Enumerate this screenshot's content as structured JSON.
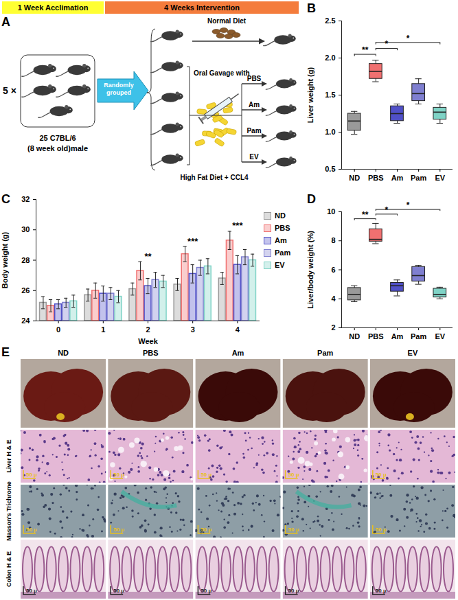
{
  "diagram": {
    "panel": "A",
    "acclimation": "1 Week Acclimation",
    "intervention": "4 Weeks Intervention",
    "multiplier": "5 ×",
    "mice": "25 C7BL/6",
    "mice_detail": "(8 week old)male",
    "grouping": "Randomly grouped",
    "normal_diet": "Normal Diet",
    "gavage": "Oral Gavage with",
    "high_fat": "High Fat Diet + CCL4",
    "groups": [
      "PBS",
      "Am",
      "Pam",
      "EV"
    ]
  },
  "chart_data": [
    {
      "type": "box",
      "panel": "B",
      "categories": [
        "ND",
        "PBS",
        "Am",
        "Pam",
        "EV"
      ],
      "colors": [
        "#9a9a9a",
        "#f07070",
        "#5050c8",
        "#7f7fd0",
        "#7fd3c6"
      ],
      "boxes": [
        {
          "min": 0.97,
          "q1": 1.02,
          "median": 1.15,
          "q3": 1.25,
          "max": 1.28
        },
        {
          "min": 1.68,
          "q1": 1.72,
          "median": 1.82,
          "q3": 1.92,
          "max": 1.97
        },
        {
          "min": 1.12,
          "q1": 1.15,
          "median": 1.25,
          "q3": 1.35,
          "max": 1.38
        },
        {
          "min": 1.38,
          "q1": 1.42,
          "median": 1.52,
          "q3": 1.65,
          "max": 1.72
        },
        {
          "min": 1.12,
          "q1": 1.17,
          "median": 1.27,
          "q3": 1.33,
          "max": 1.38
        }
      ],
      "y_label": "Liver weight (g)",
      "ylim": [
        0.5,
        2.5
      ],
      "yticks": [
        0.5,
        {
          "value": 1,
          "label": "1.0"
        },
        1.5,
        {
          "value": 2,
          "label": "2.0"
        },
        2.5
      ],
      "annotations": [
        {
          "from": "ND",
          "to": "PBS",
          "label": "**"
        },
        {
          "from": "PBS",
          "to": "Am",
          "label": "*"
        },
        {
          "from": "PBS",
          "to": "EV",
          "label": "*"
        }
      ]
    },
    {
      "type": "bar",
      "panel": "C",
      "x": [
        0,
        1,
        2,
        3,
        4
      ],
      "xlim": [
        -0.5,
        4.5
      ],
      "xticks": [
        0,
        1,
        2,
        3,
        4
      ],
      "x_label": "Week",
      "y_label": "Body weight (g)",
      "ylim": [
        24,
        32
      ],
      "yticks": [
        24,
        26,
        28,
        30,
        32
      ],
      "legend": "right",
      "series": [
        {
          "name": "ND",
          "color": "#9a9a9a",
          "values": [
            25.2,
            25.7,
            26.1,
            26.4,
            26.8
          ],
          "errors": [
            0.4,
            0.4,
            0.4,
            0.4,
            0.4
          ]
        },
        {
          "name": "PBS",
          "color": "#f07070",
          "values": [
            25.0,
            26.0,
            27.3,
            28.4,
            29.3
          ],
          "errors": [
            0.4,
            0.5,
            0.6,
            0.5,
            0.6
          ]
        },
        {
          "name": "Am",
          "color": "#5050c8",
          "values": [
            25.1,
            25.8,
            26.3,
            27.1,
            27.7
          ],
          "errors": [
            0.3,
            0.5,
            0.5,
            0.6,
            0.6
          ]
        },
        {
          "name": "Pam",
          "color": "#7f7fd0",
          "values": [
            25.2,
            25.8,
            26.7,
            27.5,
            28.2
          ],
          "errors": [
            0.3,
            0.4,
            0.5,
            0.5,
            0.5
          ]
        },
        {
          "name": "EV",
          "color": "#7fd3c6",
          "values": [
            25.3,
            25.6,
            26.6,
            27.6,
            28.0
          ],
          "errors": [
            0.4,
            0.4,
            0.4,
            0.5,
            0.4
          ]
        }
      ],
      "annotations": [
        {
          "x": 2,
          "label": "**"
        },
        {
          "x": 3,
          "label": "***"
        },
        {
          "x": 4,
          "label": "***"
        }
      ]
    },
    {
      "type": "box",
      "panel": "D",
      "categories": [
        "ND",
        "PBS",
        "Am",
        "Pam",
        "EV"
      ],
      "colors": [
        "#9a9a9a",
        "#f07070",
        "#5050c8",
        "#7f7fd0",
        "#7fd3c6"
      ],
      "boxes": [
        {
          "min": 3.8,
          "q1": 3.9,
          "median": 4.3,
          "q3": 4.75,
          "max": 4.9
        },
        {
          "min": 7.8,
          "q1": 7.95,
          "median": 8.1,
          "q3": 8.8,
          "max": 9.2
        },
        {
          "min": 4.2,
          "q1": 4.5,
          "median": 4.9,
          "q3": 5.1,
          "max": 5.3
        },
        {
          "min": 5.0,
          "q1": 5.2,
          "median": 5.6,
          "q3": 6.2,
          "max": 6.3
        },
        {
          "min": 4.0,
          "q1": 4.1,
          "median": 4.3,
          "q3": 4.7,
          "max": 4.8
        }
      ],
      "y_label": "Liver/body weight (%)",
      "ylim": [
        2,
        10
      ],
      "yticks": [
        2,
        4,
        6,
        8,
        10
      ],
      "annotations": [
        {
          "from": "ND",
          "to": "PBS",
          "label": "**"
        },
        {
          "from": "PBS",
          "to": "Am",
          "label": "*"
        },
        {
          "from": "PBS",
          "to": "EV",
          "label": "*"
        }
      ]
    }
  ],
  "image_panel": {
    "panel": "E",
    "columns": [
      "ND",
      "PBS",
      "Am",
      "Pam",
      "EV"
    ],
    "row_labels": [
      "Liver H & E",
      "Masson's Trichrome",
      "Colon H & E"
    ],
    "scale_bar": "50 μ"
  }
}
